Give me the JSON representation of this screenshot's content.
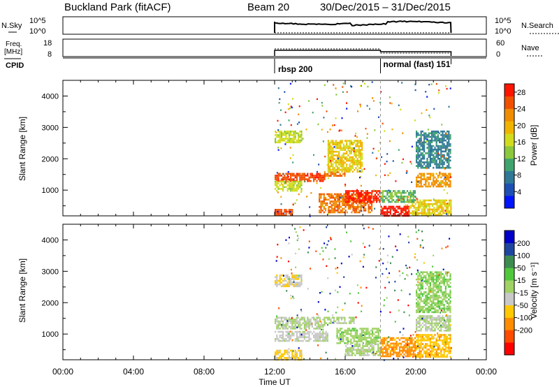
{
  "header": {
    "station": "Buckland Park (fitACF)",
    "beam": "Beam 20",
    "date_range": "30/Dec/2015 – 31/Dec/2015"
  },
  "sky_panel": {
    "left_label": "N.Sky",
    "right_label": "N.Search",
    "ticks": [
      "10^5",
      "10^0"
    ]
  },
  "freq_panel": {
    "left_label_1": "Freq.",
    "left_label_2": "[MHz]",
    "left_ticks": [
      "18",
      "8"
    ],
    "right_ticks": [
      "60",
      "0"
    ],
    "right_label": "Nave"
  },
  "cpid_panel": {
    "label": "CPID",
    "modes": [
      {
        "name": "rbsp 200",
        "start_hour": 12.0,
        "end_hour": 18.0
      },
      {
        "name": "normal (fast) 151",
        "start_hour": 18.0,
        "end_hour": 22.0
      }
    ]
  },
  "x_axis": {
    "title": "Time UT",
    "range_hours": [
      0,
      24
    ],
    "tick_labels": [
      "00:00",
      "04:00",
      "08:00",
      "12:00",
      "16:00",
      "20:00",
      "00:00"
    ],
    "data_start_hour": 12.0,
    "data_end_hour": 22.0,
    "mode_change_hour": 18.0
  },
  "chart_data": [
    {
      "type": "heatmap",
      "quantity": "power",
      "xlabel": "Time UT",
      "ylabel": "Slant Range [km]",
      "yticks": [
        "1000",
        "2000",
        "3000",
        "4000"
      ],
      "xlim_hours": [
        0,
        24
      ],
      "ylim_km": [
        180,
        4500
      ],
      "colorbar": {
        "label": "Power [dB]",
        "ticks": [
          "4",
          "8",
          "12",
          "16",
          "20",
          "24",
          "28"
        ],
        "range": [
          0,
          30
        ],
        "colors": [
          "#0014ff",
          "#1e50b4",
          "#2f7896",
          "#3fa46e",
          "#8cc83c",
          "#d2dc1e",
          "#f0b400",
          "#f08c00",
          "#f05000",
          "#ff1400"
        ]
      },
      "echo_regions": [
        {
          "t": [
            12.0,
            14.8
          ],
          "r": [
            1300,
            1550
          ],
          "v": 26
        },
        {
          "t": [
            14.8,
            16.0
          ],
          "r": [
            1450,
            1600
          ],
          "v": 24
        },
        {
          "t": [
            12.0,
            13.5
          ],
          "r": [
            1000,
            1300
          ],
          "v": 16
        },
        {
          "t": [
            14.5,
            17.5
          ],
          "r": [
            300,
            900
          ],
          "v": 24
        },
        {
          "t": [
            16.0,
            18.0
          ],
          "r": [
            600,
            1000
          ],
          "v": 28
        },
        {
          "t": [
            18.0,
            19.6
          ],
          "r": [
            180,
            500
          ],
          "v": 29
        },
        {
          "t": [
            19.6,
            22.0
          ],
          "r": [
            200,
            700
          ],
          "v": 18
        },
        {
          "t": [
            20.0,
            22.0
          ],
          "r": [
            1100,
            1550
          ],
          "v": 22
        },
        {
          "t": [
            18.0,
            20.0
          ],
          "r": [
            600,
            1000
          ],
          "v": 12
        },
        {
          "t": [
            12.0,
            13.5
          ],
          "r": [
            2550,
            2900
          ],
          "v": 16
        },
        {
          "t": [
            15.0,
            17.0
          ],
          "r": [
            1600,
            2600
          ],
          "v": 18
        },
        {
          "t": [
            20.0,
            22.0
          ],
          "r": [
            1700,
            2900
          ],
          "v": 8
        },
        {
          "t": [
            12.0,
            13.0
          ],
          "r": [
            180,
            400
          ],
          "v": 26
        }
      ]
    },
    {
      "type": "heatmap",
      "quantity": "velocity",
      "xlabel": "Time UT",
      "ylabel": "Slant Range [km]",
      "yticks": [
        "1000",
        "2000",
        "3000",
        "4000"
      ],
      "xlim_hours": [
        0,
        24
      ],
      "ylim_km": [
        180,
        4500
      ],
      "colorbar": {
        "label": "Velocity [m s⁻¹]",
        "ticks": [
          "200",
          "100",
          "50",
          "15",
          "-15",
          "-50",
          "-100",
          "-200"
        ],
        "range": [
          -250,
          250
        ],
        "colors": [
          "#ff0000",
          "#ff4b00",
          "#ff8c00",
          "#ffc800",
          "#c8c8c8",
          "#a0d264",
          "#50c83c",
          "#3c8c50",
          "#1e46a0",
          "#0000c8"
        ]
      },
      "echo_regions": [
        {
          "t": [
            12.0,
            14.8
          ],
          "r": [
            1200,
            1550
          ],
          "v": 0
        },
        {
          "t": [
            14.8,
            16.5
          ],
          "r": [
            1350,
            1550
          ],
          "v": 5
        },
        {
          "t": [
            15.5,
            18.0
          ],
          "r": [
            700,
            1200
          ],
          "v": 30
        },
        {
          "t": [
            12.0,
            15.0
          ],
          "r": [
            800,
            1100
          ],
          "v": -20
        },
        {
          "t": [
            16.0,
            18.0
          ],
          "r": [
            300,
            700
          ],
          "v": 10
        },
        {
          "t": [
            18.0,
            20.0
          ],
          "r": [
            300,
            900
          ],
          "v": -120
        },
        {
          "t": [
            20.0,
            22.0
          ],
          "r": [
            1100,
            1600
          ],
          "v": 2
        },
        {
          "t": [
            20.0,
            22.0
          ],
          "r": [
            300,
            1000
          ],
          "v": -80
        },
        {
          "t": [
            12.0,
            13.5
          ],
          "r": [
            180,
            500
          ],
          "v": -60
        },
        {
          "t": [
            12.0,
            13.5
          ],
          "r": [
            2550,
            2900
          ],
          "v": -40
        },
        {
          "t": [
            20.0,
            22.0
          ],
          "r": [
            1700,
            3000
          ],
          "v": 40
        }
      ]
    }
  ]
}
